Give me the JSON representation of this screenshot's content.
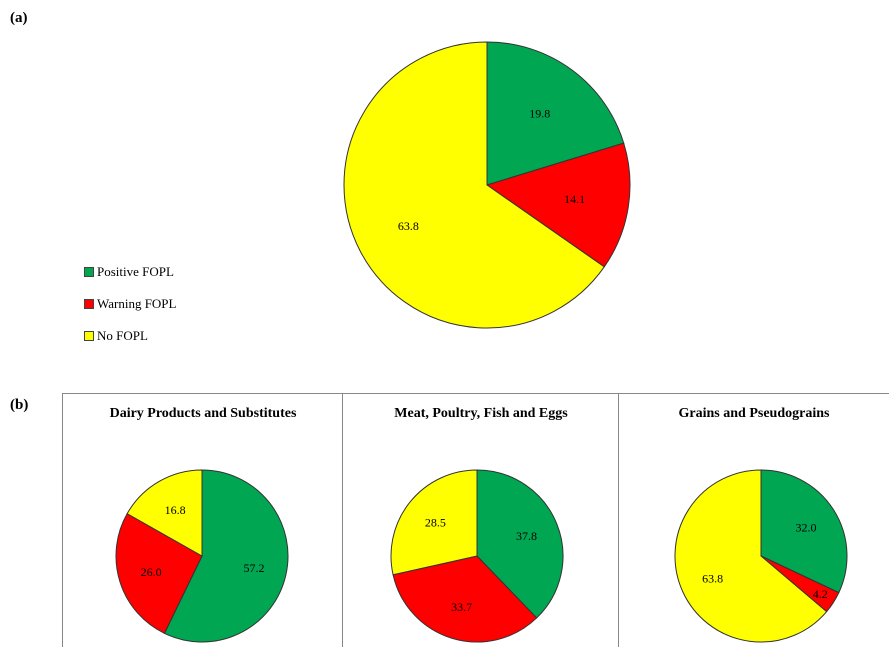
{
  "panel_labels": {
    "a": "(a)",
    "b": "(b)"
  },
  "legend": [
    {
      "label": "Positive FOPL",
      "color": "#00A651"
    },
    {
      "label": "Warning FOPL",
      "color": "#FF0000"
    },
    {
      "label": "No FOPL",
      "color": "#FFFF00"
    }
  ],
  "chart_data": [
    {
      "type": "pie",
      "title": "",
      "labels": [
        "Positive FOPL",
        "Warning FOPL",
        "No FOPL"
      ],
      "values": [
        19.8,
        14.1,
        63.8
      ],
      "value_labels": [
        "19.8",
        "14.1",
        "63.8"
      ],
      "colors": [
        "#00A651",
        "#FF0000",
        "#FFFF00"
      ]
    },
    {
      "type": "pie",
      "title": "Dairy Products and Substitutes",
      "labels": [
        "Positive FOPL",
        "Warning FOPL",
        "No FOPL"
      ],
      "values": [
        57.2,
        26.0,
        16.8
      ],
      "value_labels": [
        "57.2",
        "26.0",
        "16.8"
      ],
      "colors": [
        "#00A651",
        "#FF0000",
        "#FFFF00"
      ]
    },
    {
      "type": "pie",
      "title": "Meat, Poultry, Fish and Eggs",
      "labels": [
        "Positive FOPL",
        "Warning FOPL",
        "No FOPL"
      ],
      "values": [
        37.8,
        33.7,
        28.5
      ],
      "value_labels": [
        "37.8",
        "33.7",
        "28.5"
      ],
      "colors": [
        "#00A651",
        "#FF0000",
        "#FFFF00"
      ]
    },
    {
      "type": "pie",
      "title": "Grains and Pseudograins",
      "labels": [
        "Positive FOPL",
        "Warning FOPL",
        "No FOPL"
      ],
      "values": [
        32.0,
        4.2,
        63.8
      ],
      "value_labels": [
        "32.0",
        "4.2",
        "63.8"
      ],
      "colors": [
        "#00A651",
        "#FF0000",
        "#FFFF00"
      ]
    }
  ]
}
